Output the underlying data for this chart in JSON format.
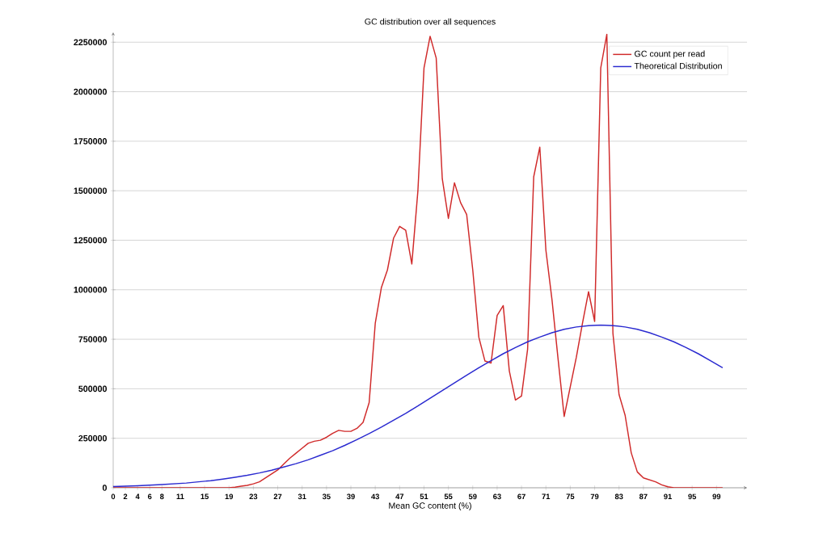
{
  "chart_data": {
    "type": "line",
    "title": "GC distribution over all sequences",
    "xlabel": "Mean GC content (%)",
    "x": [
      0,
      1,
      2,
      3,
      4,
      5,
      6,
      7,
      8,
      9,
      10,
      11,
      12,
      13,
      14,
      15,
      16,
      17,
      18,
      19,
      20,
      21,
      22,
      23,
      24,
      25,
      26,
      27,
      28,
      29,
      30,
      31,
      32,
      33,
      34,
      35,
      36,
      37,
      38,
      39,
      40,
      41,
      42,
      43,
      44,
      45,
      46,
      47,
      48,
      49,
      50,
      51,
      52,
      53,
      54,
      55,
      56,
      57,
      58,
      59,
      60,
      61,
      62,
      63,
      64,
      65,
      66,
      67,
      68,
      69,
      70,
      71,
      72,
      73,
      74,
      75,
      76,
      77,
      78,
      79,
      80,
      81,
      82,
      83,
      84,
      85,
      86,
      87,
      88,
      89,
      90,
      91,
      92,
      93,
      94,
      95,
      96,
      97,
      98,
      99,
      100
    ],
    "series": [
      {
        "name": "GC count per read",
        "color": "#d02a2a",
        "values": [
          0,
          0,
          0,
          0,
          0,
          0,
          0,
          0,
          0,
          0,
          0,
          0,
          0,
          0,
          0,
          0,
          0,
          0,
          0,
          0,
          3000,
          8000,
          12000,
          20000,
          30000,
          50000,
          70000,
          90000,
          120000,
          150000,
          175000,
          200000,
          225000,
          235000,
          240000,
          255000,
          275000,
          290000,
          285000,
          285000,
          300000,
          330000,
          430000,
          830000,
          1010000,
          1100000,
          1260000,
          1320000,
          1300000,
          1130000,
          1500000,
          2120000,
          2280000,
          2170000,
          1560000,
          1360000,
          1540000,
          1440000,
          1380000,
          1100000,
          760000,
          640000,
          630000,
          870000,
          920000,
          590000,
          443000,
          463000,
          700000,
          1570000,
          1720000,
          1200000,
          950000,
          650000,
          360000,
          510000,
          660000,
          830000,
          990000,
          840000,
          2120000,
          2290000,
          780000,
          471000,
          366000,
          177000,
          80000,
          50000,
          40000,
          30000,
          15000,
          5000,
          0,
          0,
          0,
          0,
          0,
          0,
          0,
          0,
          0
        ]
      },
      {
        "name": "Theoretical Distribution",
        "color": "#2a2ad0",
        "x": [
          0,
          2,
          4,
          6,
          8,
          10,
          12,
          14,
          16,
          18,
          20,
          22,
          24,
          26,
          28,
          30,
          32,
          34,
          36,
          38,
          40,
          42,
          44,
          46,
          48,
          50,
          52,
          54,
          56,
          58,
          60,
          62,
          64,
          66,
          68,
          70,
          72,
          74,
          76,
          78,
          80,
          82,
          84,
          86,
          88,
          90,
          92,
          94,
          96,
          98,
          100
        ],
        "values": [
          6000,
          8000,
          10000,
          13000,
          16000,
          20000,
          24000,
          30000,
          36000,
          44000,
          53000,
          63000,
          75000,
          89000,
          105000,
          122000,
          141000,
          164000,
          187000,
          214000,
          243000,
          274000,
          306000,
          341000,
          376000,
          413000,
          452000,
          491000,
          530000,
          568000,
          606000,
          642000,
          677000,
          708000,
          737000,
          761000,
          783000,
          800000,
          812000,
          819000,
          822000,
          819000,
          812000,
          800000,
          783000,
          761000,
          737000,
          708000,
          677000,
          642000,
          606000
        ]
      }
    ],
    "xlim": [
      0,
      104
    ],
    "ylim": [
      0,
      2300000
    ],
    "xticks": [
      0,
      2,
      4,
      6,
      8,
      11,
      15,
      19,
      23,
      27,
      31,
      35,
      39,
      43,
      47,
      51,
      55,
      59,
      63,
      67,
      71,
      75,
      79,
      83,
      87,
      91,
      95,
      99
    ],
    "yticks": [
      0,
      250000,
      500000,
      750000,
      1000000,
      1250000,
      1500000,
      1750000,
      2000000,
      2250000
    ],
    "grid": "y",
    "legend": "top right"
  }
}
